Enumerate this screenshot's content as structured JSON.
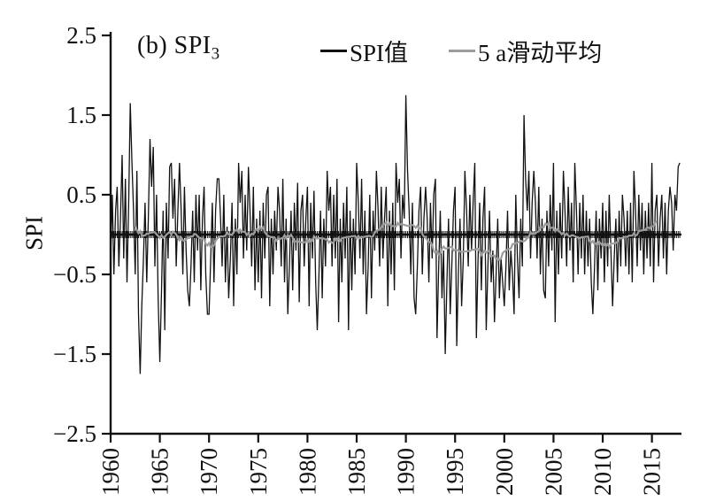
{
  "figure": {
    "title_prefix": "(b) SPI",
    "title_sub": "3",
    "ylabel": "SPI"
  },
  "chart_data": {
    "type": "line",
    "title": "(b) SPI3",
    "xlabel": "",
    "ylabel": "SPI",
    "ylim": [
      -2.5,
      2.5
    ],
    "yticks": [
      2.5,
      1.5,
      0.5,
      -0.5,
      -1.5,
      -2.5
    ],
    "xlim": [
      1960,
      2018
    ],
    "xticks": [
      1960,
      1965,
      1970,
      1975,
      1980,
      1985,
      1990,
      1995,
      2000,
      2005,
      2010,
      2015
    ],
    "x_start_year": 1960,
    "points_per_year": 6,
    "grid": false,
    "legend_position": "top",
    "zero_line": true,
    "series": [
      {
        "name": "SPI值",
        "color": "#111111",
        "values": [
          -0.3,
          0.5,
          -0.5,
          0.3,
          0.6,
          -0.4,
          0.2,
          1.0,
          -0.3,
          0.7,
          -0.6,
          0.4,
          1.65,
          0.9,
          0.3,
          -0.5,
          0.8,
          -1.0,
          -1.75,
          -0.9,
          -0.3,
          0.4,
          -0.6,
          0.2,
          1.2,
          0.6,
          1.1,
          -0.4,
          0.5,
          -0.8,
          -1.6,
          -0.7,
          0.3,
          -1.2,
          0.4,
          -0.3,
          0.85,
          0.9,
          0.2,
          0.7,
          -0.4,
          0.3,
          0.9,
          0.3,
          -0.5,
          0.6,
          -0.2,
          -0.7,
          -0.9,
          -0.4,
          0.3,
          -0.6,
          0.5,
          -0.2,
          0.5,
          -0.7,
          0.2,
          0.6,
          -0.5,
          -1.0,
          -1.0,
          -0.3,
          0.4,
          -0.6,
          0.3,
          0.7,
          0.7,
          0.2,
          -0.4,
          0.5,
          -0.6,
          0.1,
          -0.8,
          -0.3,
          0.4,
          -0.9,
          0.2,
          -0.5,
          0.9,
          0.4,
          0.8,
          -0.3,
          0.5,
          -0.2,
          0.85,
          0.3,
          -0.4,
          0.6,
          -0.7,
          0.2,
          -0.6,
          0.3,
          -0.8,
          0.4,
          -0.3,
          0.5,
          0.6,
          -0.9,
          0.2,
          -0.5,
          0.3,
          -0.2,
          0.6,
          0.3,
          -0.4,
          0.7,
          -0.6,
          0.2,
          -1.0,
          -0.4,
          0.3,
          -0.7,
          0.4,
          -0.2,
          0.65,
          -0.85,
          0.3,
          0.5,
          -0.4,
          0.2,
          0.6,
          -0.9,
          0.4,
          -0.3,
          0.55,
          -0.6,
          -1.2,
          -0.5,
          0.3,
          -0.8,
          0.2,
          -0.4,
          0.8,
          0.3,
          0.6,
          -0.4,
          0.5,
          -0.3,
          0.7,
          -1.1,
          0.2,
          -0.6,
          0.4,
          -0.3,
          0.6,
          -1.2,
          0.3,
          -0.7,
          0.2,
          -0.5,
          0.9,
          0.4,
          -0.3,
          0.7,
          -0.5,
          0.3,
          -1.0,
          -0.4,
          0.5,
          -0.8,
          0.3,
          -0.2,
          0.8,
          0.35,
          -0.4,
          0.6,
          -0.3,
          0.2,
          0.6,
          -0.9,
          0.3,
          -0.5,
          0.4,
          -0.7,
          0.9,
          0.4,
          0.7,
          -0.3,
          0.5,
          0.2,
          1.75,
          0.8,
          0.3,
          -0.5,
          0.4,
          -0.8,
          -1.0,
          -0.4,
          0.3,
          0.6,
          -0.5,
          0.2,
          0.6,
          0.2,
          -0.6,
          0.4,
          -0.3,
          0.5,
          0.7,
          -1.3,
          -0.4,
          0.3,
          -0.8,
          -0.2,
          -1.5,
          -0.6,
          0.2,
          -1.0,
          -0.4,
          0.3,
          0.6,
          -1.4,
          -0.5,
          0.2,
          -0.9,
          -0.3,
          0.8,
          0.3,
          -0.4,
          0.5,
          -0.2,
          0.4,
          0.9,
          -1.3,
          -0.3,
          0.4,
          -0.7,
          0.2,
          0.6,
          -1.2,
          -0.4,
          0.3,
          -0.6,
          -0.2,
          -1.1,
          -0.5,
          0.2,
          -0.8,
          -0.3,
          -0.6,
          -0.9,
          -0.4,
          0.3,
          -0.7,
          -0.2,
          -0.5,
          -1.0,
          0.5,
          -0.3,
          -0.8,
          0.2,
          -0.4,
          1.5,
          0.7,
          0.3,
          0.8,
          -0.3,
          0.4,
          0.8,
          0.4,
          -0.3,
          0.6,
          -0.5,
          0.2,
          -0.7,
          -0.8,
          0.3,
          -0.4,
          0.5,
          -0.2,
          0.9,
          -1.1,
          0.3,
          -0.5,
          0.4,
          -0.3,
          0.8,
          0.3,
          -0.4,
          0.6,
          -0.2,
          0.4,
          -0.6,
          0.9,
          0.3,
          -0.5,
          0.4,
          -0.3,
          0.5,
          -0.5,
          0.3,
          -0.4,
          0.2,
          -0.6,
          -1.0,
          -0.4,
          0.3,
          -0.7,
          0.2,
          -0.3,
          0.4,
          -0.6,
          0.3,
          -0.4,
          0.5,
          -0.2,
          -0.9,
          -0.3,
          0.2,
          -0.6,
          0.3,
          -0.4,
          0.5,
          0.2,
          -0.4,
          0.3,
          -0.5,
          0.4,
          -0.6,
          0.8,
          0.3,
          -0.4,
          0.5,
          -0.2,
          0.4,
          -0.5,
          0.3,
          -0.3,
          0.4,
          -0.4,
          0.9,
          -0.6,
          0.3,
          0.5,
          -0.4,
          0.2,
          0.5,
          -0.3,
          0.4,
          -0.5,
          0.3,
          0.6,
          0.4,
          -0.2,
          0.5,
          0.3,
          0.85,
          0.9
        ]
      },
      {
        "name": "5 a滑动平均",
        "color": "#9c9c9c",
        "derived": "centered 5-year moving average of SPI值",
        "window_years": 5
      }
    ]
  }
}
